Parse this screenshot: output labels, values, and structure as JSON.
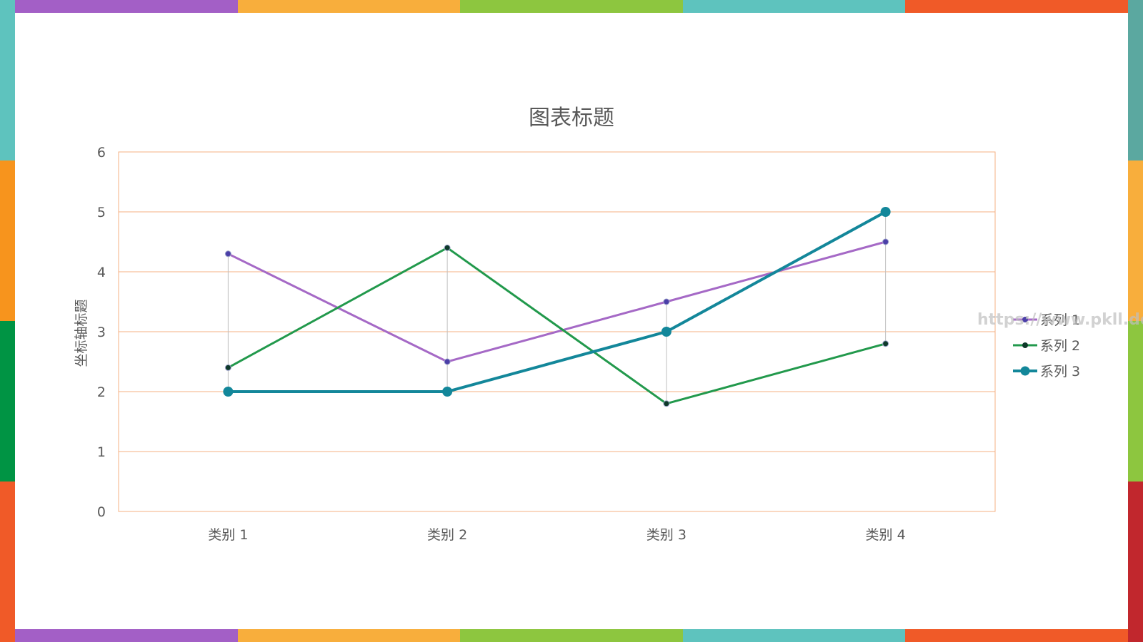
{
  "frame": {
    "top_colors": [
      "#A35FC6",
      "#F8AE3C",
      "#8DC63F",
      "#5EC3BE",
      "#F05A28"
    ],
    "bottom_colors": [
      "#A35FC6",
      "#F8AE3C",
      "#8DC63F",
      "#5EC3BE",
      "#F05A28"
    ],
    "left_colors": [
      "#5EC3BE",
      "#F7941D",
      "#009444",
      "#F05A28"
    ],
    "right_colors": [
      "#5BA8A0",
      "#F8AE3C",
      "#8DC63F",
      "#C1272D"
    ]
  },
  "watermark": "https://www.pkll.de",
  "chart_data": {
    "type": "line",
    "title": "图表标题",
    "ylabel": "坐标轴标题",
    "xlabel": "",
    "categories": [
      "类别 1",
      "类别 2",
      "类别 3",
      "类别 4"
    ],
    "ylim": [
      0,
      6
    ],
    "yticks": [
      0,
      1,
      2,
      3,
      4,
      5,
      6
    ],
    "grid": true,
    "drop_lines": true,
    "legend_position": "right",
    "series": [
      {
        "name": "系列 1",
        "values": [
          4.3,
          2.5,
          3.5,
          4.5
        ],
        "color": "#A569C6",
        "marker_color": "#4B3FA8"
      },
      {
        "name": "系列 2",
        "values": [
          2.4,
          4.4,
          1.8,
          2.8
        ],
        "color": "#22994C",
        "marker_color": "#0E3A2A"
      },
      {
        "name": "系列 3",
        "values": [
          2,
          2,
          3,
          5
        ],
        "color": "#13879A",
        "marker_color": "#13879A"
      }
    ]
  }
}
